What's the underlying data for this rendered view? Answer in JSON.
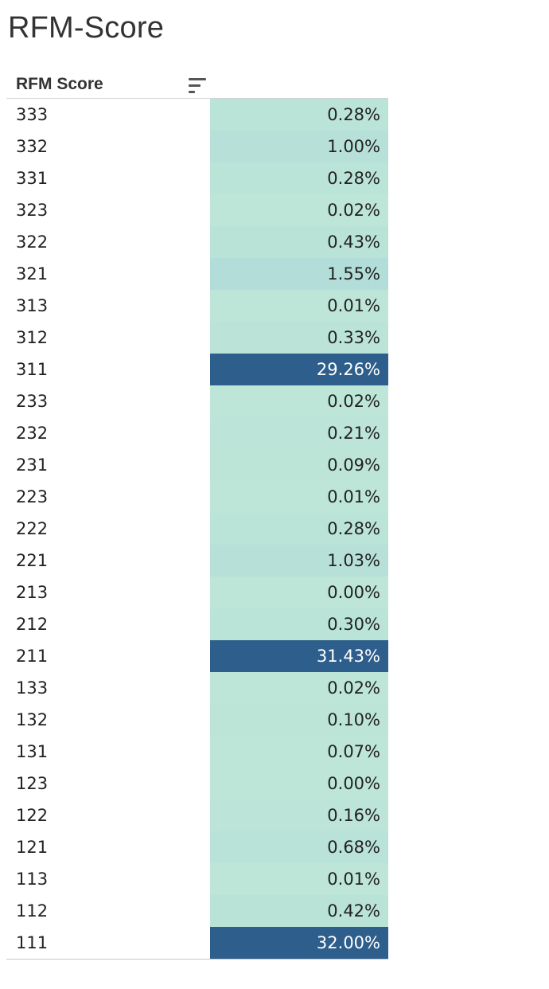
{
  "title": "RFM-Score",
  "chart_data": {
    "type": "table",
    "title": "RFM-Score",
    "column_header": "RFM Score",
    "categories": [
      "333",
      "332",
      "331",
      "323",
      "322",
      "321",
      "313",
      "312",
      "311",
      "233",
      "232",
      "231",
      "223",
      "222",
      "221",
      "213",
      "212",
      "211",
      "133",
      "132",
      "131",
      "123",
      "122",
      "121",
      "113",
      "112",
      "111"
    ],
    "labels": [
      "0.28%",
      "1.00%",
      "0.28%",
      "0.02%",
      "0.43%",
      "1.55%",
      "0.01%",
      "0.33%",
      "29.26%",
      "0.02%",
      "0.21%",
      "0.09%",
      "0.01%",
      "0.28%",
      "1.03%",
      "0.00%",
      "0.30%",
      "31.43%",
      "0.02%",
      "0.10%",
      "0.07%",
      "0.00%",
      "0.16%",
      "0.68%",
      "0.01%",
      "0.42%",
      "32.00%"
    ],
    "values": [
      0.28,
      1.0,
      0.28,
      0.02,
      0.43,
      1.55,
      0.01,
      0.33,
      29.26,
      0.02,
      0.21,
      0.09,
      0.01,
      0.28,
      1.03,
      0.0,
      0.3,
      31.43,
      0.02,
      0.1,
      0.07,
      0.0,
      0.16,
      0.68,
      0.01,
      0.42,
      32.0
    ],
    "color_scale": {
      "low": "#bde5d8",
      "mid": "#b3ddd8",
      "high": "#2e5e8b",
      "text_dark": "#222222",
      "text_light": "#ffffff"
    }
  }
}
